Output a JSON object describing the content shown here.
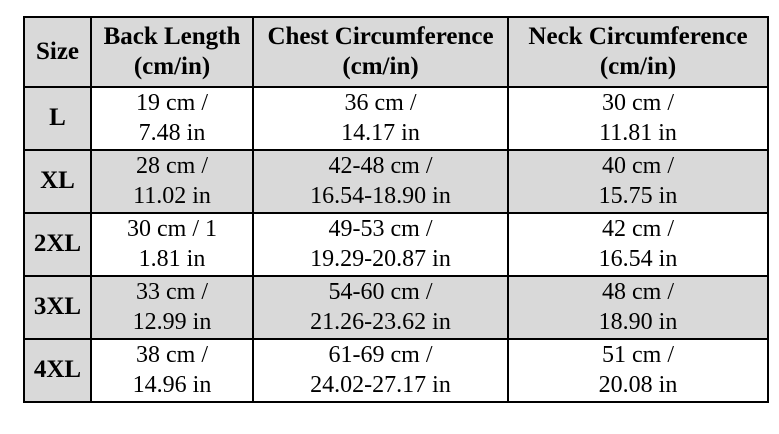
{
  "table": {
    "headers": [
      "Size",
      "Back Length\n(cm/in)",
      "Chest Circumference\n(cm/in)",
      "Neck Circumference\n(cm/in)"
    ],
    "rows": [
      {
        "size": "L",
        "back": "19 cm /\n7.48 in",
        "chest": "36 cm /\n14.17 in",
        "neck": "30 cm /\n11.81 in"
      },
      {
        "size": "XL",
        "back": "28 cm /\n11.02 in",
        "chest": "42-48 cm /\n16.54-18.90 in",
        "neck": "40 cm /\n15.75 in"
      },
      {
        "size": "2XL",
        "back": "30 cm / 1\n1.81 in",
        "chest": "49-53 cm /\n19.29-20.87 in",
        "neck": "42 cm /\n16.54 in"
      },
      {
        "size": "3XL",
        "back": "33 cm /\n12.99 in",
        "chest": "54-60 cm /\n21.26-23.62 in",
        "neck": "48 cm /\n18.90 in"
      },
      {
        "size": "4XL",
        "back": "38 cm /\n14.96 in",
        "chest": "61-69 cm /\n24.02-27.17 in",
        "neck": "51 cm /\n20.08 in"
      }
    ],
    "colors": {
      "header_bg": "#d9d9d9",
      "shaded_row_bg": "#d9d9d9",
      "white_row_bg": "#ffffff",
      "border": "#000000"
    }
  }
}
